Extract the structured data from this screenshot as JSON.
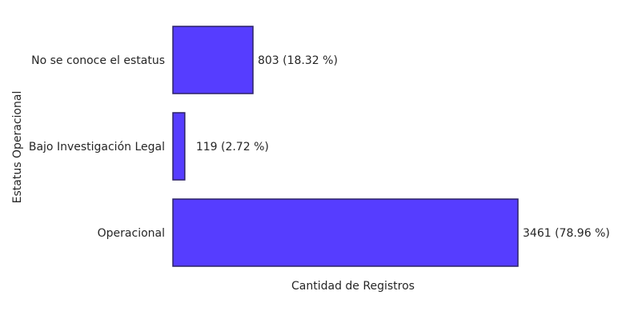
{
  "chart_data": {
    "type": "bar",
    "orientation": "horizontal",
    "categories": [
      "No se conoce el estatus",
      "Bajo Investigación Legal",
      "Operacional"
    ],
    "values": [
      803,
      119,
      3461
    ],
    "data_labels": [
      "803 (18.32 %)",
      "119 (2.72 %)",
      "3461 (78.96 %)"
    ],
    "xlabel": "Cantidad de Registros",
    "ylabel": "Estatus Operacional",
    "xlim": [
      0,
      3461
    ],
    "grid": false,
    "bar_color": "#563dff",
    "bar_edge_color": "#2b2266"
  }
}
